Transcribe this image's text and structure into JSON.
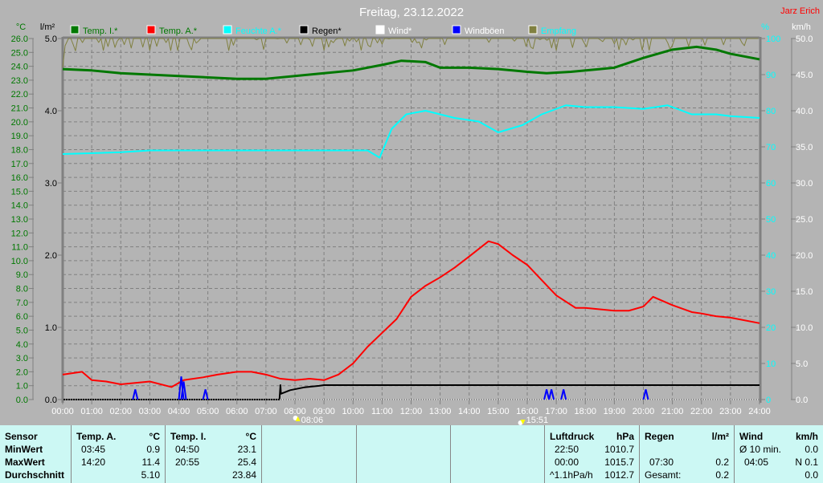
{
  "title": "Freitag, 23.12.2022",
  "author": "Jarz Erich",
  "colors": {
    "background": "#b4b4b4",
    "temp_i": "#007800",
    "temp_a": "#ff0000",
    "feuchte": "#00ffff",
    "regen": "#000000",
    "wind": "#ffffff",
    "windboeen": "#0000ff",
    "empfang": "#808040",
    "table_bg": "#ccf8f4"
  },
  "chart_data": {
    "type": "line",
    "title": "Freitag, 23.12.2022",
    "grid": true,
    "legend_placement": "top",
    "x_ticks": [
      "00:00",
      "01:00",
      "02:00",
      "03:00",
      "04:00",
      "05:00",
      "06:00",
      "07:00",
      "08:00",
      "09:00",
      "10:00",
      "11:00",
      "12:00",
      "13:00",
      "14:00",
      "15:00",
      "16:00",
      "17:00",
      "18:00",
      "19:00",
      "20:00",
      "21:00",
      "22:00",
      "23:00",
      "24:00"
    ],
    "axes": {
      "temp": {
        "unit": "°C",
        "range": [
          0,
          26
        ],
        "step": 1,
        "color": "#007800"
      },
      "rain": {
        "unit": "l/m²",
        "range": [
          0,
          5
        ],
        "ticks": [
          "0.0",
          "1.0",
          "2.0",
          "3.0",
          "4.0",
          "5.0"
        ]
      },
      "humidity": {
        "unit": "%",
        "range": [
          0,
          100
        ],
        "ticks": [
          "0",
          "10",
          "20",
          "30",
          "40",
          "50",
          "60",
          "70",
          "80",
          "90",
          "100"
        ],
        "color": "#00ffff"
      },
      "wind": {
        "unit": "km/h",
        "range": [
          0,
          50
        ],
        "step": 5
      }
    },
    "legend": [
      {
        "label": "Temp. I.*",
        "color": "#007800",
        "text_color": "#007800"
      },
      {
        "label": "Temp. A.*",
        "color": "#ff0000",
        "text_color": "#007800"
      },
      {
        "label": "Feuchte A.*",
        "color": "#00ffff",
        "text_color": "#00ffff"
      },
      {
        "label": "Regen*",
        "color": "#000000",
        "text_color": "#000000"
      },
      {
        "label": "Wind*",
        "color": "#ffffff",
        "text_color": "#ffffff"
      },
      {
        "label": "Windböen",
        "color": "#0000ff",
        "text_color": "#ffffff"
      },
      {
        "label": "Empfang",
        "color": "#808040",
        "text_color": "#00ffff"
      }
    ],
    "series": [
      {
        "name": "Temp. I.",
        "axis": "temp",
        "color": "#007800",
        "width": 3,
        "points": [
          [
            "00:00",
            23.8
          ],
          [
            "01:00",
            23.7
          ],
          [
            "02:00",
            23.5
          ],
          [
            "03:00",
            23.4
          ],
          [
            "04:00",
            23.3
          ],
          [
            "05:00",
            23.2
          ],
          [
            "06:00",
            23.1
          ],
          [
            "07:00",
            23.1
          ],
          [
            "08:00",
            23.3
          ],
          [
            "09:00",
            23.5
          ],
          [
            "10:00",
            23.7
          ],
          [
            "11:00",
            24.1
          ],
          [
            "11:40",
            24.4
          ],
          [
            "12:30",
            24.3
          ],
          [
            "13:00",
            23.9
          ],
          [
            "14:00",
            23.9
          ],
          [
            "15:00",
            23.8
          ],
          [
            "16:00",
            23.6
          ],
          [
            "16:40",
            23.5
          ],
          [
            "17:30",
            23.6
          ],
          [
            "18:30",
            23.8
          ],
          [
            "19:00",
            23.9
          ],
          [
            "20:00",
            24.6
          ],
          [
            "21:00",
            25.2
          ],
          [
            "21:50",
            25.4
          ],
          [
            "22:30",
            25.2
          ],
          [
            "23:00",
            24.9
          ],
          [
            "24:00",
            24.5
          ]
        ]
      },
      {
        "name": "Feuchte A.",
        "axis": "humidity",
        "color": "#00ffff",
        "width": 2,
        "points": [
          [
            "00:00",
            68
          ],
          [
            "02:00",
            68.5
          ],
          [
            "03:00",
            69
          ],
          [
            "05:00",
            69
          ],
          [
            "07:00",
            69
          ],
          [
            "09:00",
            69
          ],
          [
            "10:30",
            69
          ],
          [
            "10:55",
            67
          ],
          [
            "11:20",
            75
          ],
          [
            "11:50",
            79
          ],
          [
            "12:30",
            80
          ],
          [
            "13:30",
            78
          ],
          [
            "14:20",
            77
          ],
          [
            "15:00",
            74
          ],
          [
            "15:50",
            76
          ],
          [
            "16:30",
            79
          ],
          [
            "17:20",
            81.5
          ],
          [
            "18:00",
            81
          ],
          [
            "19:00",
            81
          ],
          [
            "20:00",
            80.5
          ],
          [
            "20:50",
            81.5
          ],
          [
            "21:40",
            79
          ],
          [
            "22:30",
            79
          ],
          [
            "23:00",
            78.5
          ],
          [
            "24:00",
            78
          ]
        ]
      },
      {
        "name": "Temp. A.",
        "axis": "temp",
        "color": "#ff0000",
        "width": 2,
        "points": [
          [
            "00:00",
            1.8
          ],
          [
            "00:40",
            2.0
          ],
          [
            "01:00",
            1.4
          ],
          [
            "01:30",
            1.3
          ],
          [
            "02:00",
            1.1
          ],
          [
            "02:30",
            1.2
          ],
          [
            "03:00",
            1.3
          ],
          [
            "03:45",
            0.9
          ],
          [
            "04:10",
            1.4
          ],
          [
            "04:50",
            1.6
          ],
          [
            "05:20",
            1.8
          ],
          [
            "06:00",
            2.0
          ],
          [
            "06:30",
            2.0
          ],
          [
            "07:00",
            1.8
          ],
          [
            "07:30",
            1.5
          ],
          [
            "08:00",
            1.4
          ],
          [
            "08:30",
            1.5
          ],
          [
            "09:00",
            1.4
          ],
          [
            "09:30",
            1.8
          ],
          [
            "10:00",
            2.6
          ],
          [
            "10:30",
            3.8
          ],
          [
            "11:00",
            4.8
          ],
          [
            "11:30",
            5.8
          ],
          [
            "12:00",
            7.4
          ],
          [
            "12:30",
            8.2
          ],
          [
            "13:00",
            8.8
          ],
          [
            "13:30",
            9.5
          ],
          [
            "14:00",
            10.3
          ],
          [
            "14:40",
            11.4
          ],
          [
            "15:00",
            11.2
          ],
          [
            "15:30",
            10.4
          ],
          [
            "16:00",
            9.7
          ],
          [
            "16:30",
            8.6
          ],
          [
            "17:00",
            7.5
          ],
          [
            "17:40",
            6.6
          ],
          [
            "18:00",
            6.6
          ],
          [
            "19:00",
            6.4
          ],
          [
            "19:30",
            6.4
          ],
          [
            "20:00",
            6.7
          ],
          [
            "20:20",
            7.4
          ],
          [
            "21:00",
            6.8
          ],
          [
            "21:40",
            6.3
          ],
          [
            "22:00",
            6.2
          ],
          [
            "22:30",
            6.0
          ],
          [
            "23:00",
            5.9
          ],
          [
            "24:00",
            5.5
          ]
        ]
      },
      {
        "name": "Regen",
        "axis": "rain",
        "color": "#000000",
        "width": 2,
        "points": [
          [
            "00:00",
            0
          ],
          [
            "07:28",
            0
          ],
          [
            "07:30",
            0.2
          ],
          [
            "07:31",
            0.08
          ],
          [
            "07:50",
            0.13
          ],
          [
            "08:20",
            0.17
          ],
          [
            "08:50",
            0.19
          ],
          [
            "09:00",
            0.2
          ],
          [
            "24:00",
            0.2
          ]
        ]
      },
      {
        "name": "Wind",
        "axis": "wind",
        "color": "#ffffff",
        "width": 1,
        "style": "dotted",
        "points": [
          [
            "00:00",
            0
          ],
          [
            "24:00",
            0
          ]
        ]
      },
      {
        "name": "Windböen",
        "axis": "wind",
        "color": "#0000ff",
        "width": 2,
        "style": "spikes",
        "spikes": [
          [
            "02:30",
            1.4
          ],
          [
            "04:05",
            3.2
          ],
          [
            "04:10",
            2.5
          ],
          [
            "04:55",
            1.4
          ],
          [
            "16:40",
            1.4
          ],
          [
            "16:50",
            1.4
          ],
          [
            "17:15",
            1.4
          ],
          [
            "20:05",
            1.4
          ]
        ]
      },
      {
        "name": "Empfang",
        "axis": "humidity",
        "color": "#808040",
        "width": 1,
        "style": "noisy",
        "points": [
          [
            "00:00",
            92
          ],
          [
            "00:05",
            98
          ],
          [
            "00:10",
            100
          ],
          [
            "24:00",
            100
          ]
        ]
      }
    ],
    "sun_markers": [
      {
        "type": "sunrise",
        "time": "08:06",
        "label": "08:06"
      },
      {
        "type": "sunset",
        "time": "15:51",
        "label": "15:51"
      }
    ]
  },
  "table": {
    "sensor": {
      "header": "Sensor",
      "rows": [
        "MinWert",
        "MaxWert",
        "Durchschnitt"
      ]
    },
    "temp_a": {
      "header": "Temp. A.",
      "unit": "°C",
      "min_time": "03:45",
      "min": "0.9",
      "max_time": "14:20",
      "max": "11.4",
      "avg": "5.10"
    },
    "temp_i": {
      "header": "Temp. I.",
      "unit": "°C",
      "min_time": "04:50",
      "min": "23.1",
      "max_time": "20:55",
      "max": "25.4",
      "avg": "23.84"
    },
    "luftdruck": {
      "header": "Luftdruck",
      "unit": "hPa",
      "min_time": "22:50",
      "min": "1010.7",
      "max_time": "00:00",
      "max": "1015.7",
      "trend": "^1.1hPa/h",
      "avg": "1012.7"
    },
    "regen": {
      "header": "Regen",
      "unit": "l/m²",
      "max_time": "07:30",
      "max": "0.2",
      "total_label": "Gesamt:",
      "total": "0.2"
    },
    "wind": {
      "header": "Wind",
      "unit": "km/h",
      "avg_label": "Ø 10 min.",
      "avg": "0.0",
      "max_time": "04:05",
      "max": "N 0.1",
      "last": "0.0"
    }
  }
}
